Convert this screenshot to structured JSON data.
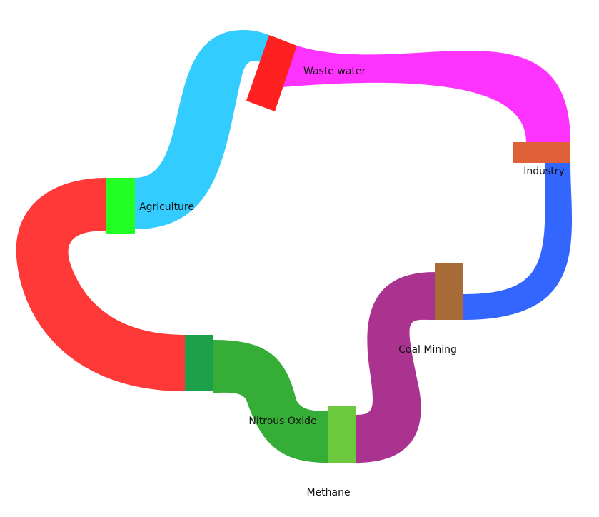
{
  "chart_data": {
    "type": "sankey",
    "nodes": [
      {
        "name": "Agriculture",
        "color": "#22ff22"
      },
      {
        "name": "Waste water",
        "color": "#ff2020"
      },
      {
        "name": "Industry",
        "color": "#e0603a"
      },
      {
        "name": "Coal Mining",
        "color": "#a86c38"
      },
      {
        "name": "Methane",
        "color": "#6cc83c"
      },
      {
        "name": "Nitrous Oxide",
        "color": "#1ca04a"
      }
    ],
    "links": [
      {
        "source": "Agriculture",
        "target": "Waste water",
        "value": 2.0,
        "color": "#33ccff"
      },
      {
        "source": "Waste water",
        "target": "Industry",
        "value": 1.5,
        "color": "#ff33ff"
      },
      {
        "source": "Industry",
        "target": "Coal Mining",
        "value": 1.0,
        "color": "#3366ff"
      },
      {
        "source": "Coal Mining",
        "target": "Methane",
        "value": 2.0,
        "color": "#aa3390"
      },
      {
        "source": "Methane",
        "target": "Nitrous Oxide",
        "value": 1.8,
        "color": "#36ad36"
      },
      {
        "source": "Nitrous Oxide",
        "target": "Agriculture",
        "value": 2.0,
        "color": "#ff3838"
      }
    ]
  }
}
